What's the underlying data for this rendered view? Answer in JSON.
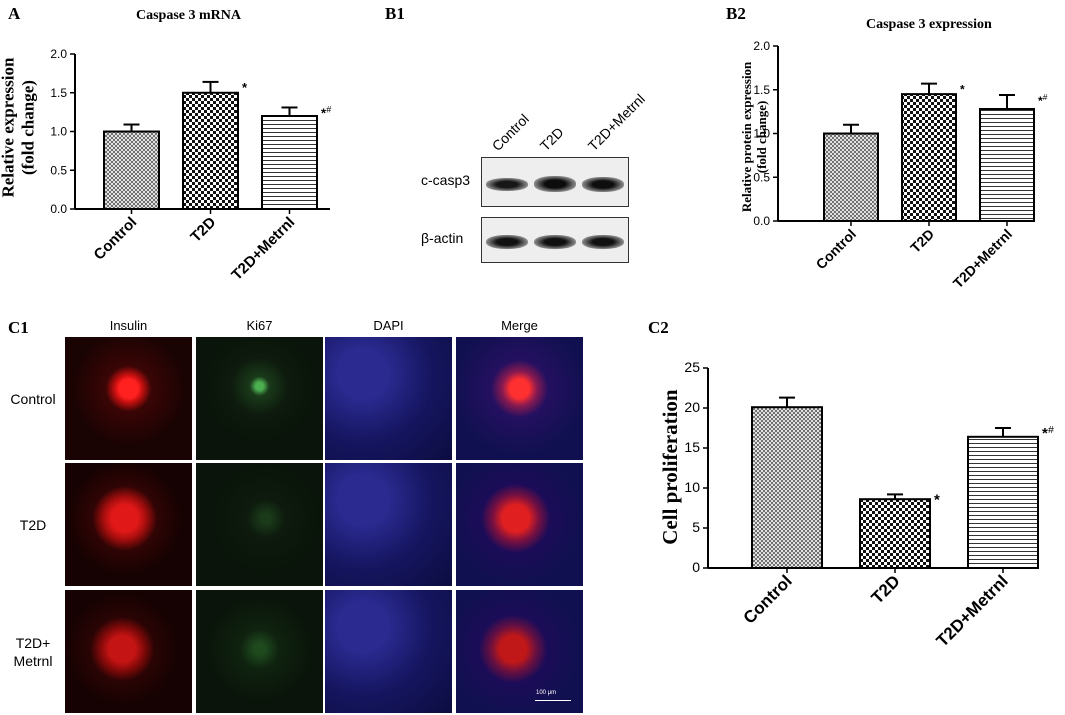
{
  "panel_labels": {
    "A": "A",
    "B1": "B1",
    "B2": "B2",
    "C1": "C1",
    "C2": "C2"
  },
  "chart_data": [
    {
      "type": "bar",
      "panel": "A",
      "title": "Caspase 3  mRNA",
      "ylabel": "Relative expression\n(fold change)",
      "categories": [
        "Control",
        "T2D",
        "T2D+Metrnl"
      ],
      "values": [
        1.0,
        1.5,
        1.2
      ],
      "errors": [
        0.09,
        0.14,
        0.11
      ],
      "significance": [
        "",
        "*",
        "*#"
      ],
      "ylim": [
        0,
        2.0
      ],
      "yticks": [
        "0.0",
        "0.5",
        "1.0",
        "1.5",
        "2.0"
      ],
      "patterns": [
        "grid",
        "checker",
        "hlines"
      ]
    },
    {
      "type": "bar",
      "panel": "B2",
      "title": "Caspase 3  expression",
      "ylabel": "Relative protein expression\n(fold change)",
      "categories": [
        "Control",
        "T2D",
        "T2D+Metrnl"
      ],
      "values": [
        1.0,
        1.45,
        1.28
      ],
      "errors": [
        0.1,
        0.12,
        0.16
      ],
      "significance": [
        "",
        "*",
        "*#"
      ],
      "ylim": [
        0,
        2.0
      ],
      "yticks": [
        "0.0",
        "0.5",
        "1.0",
        "1.5",
        "2.0"
      ],
      "patterns": [
        "grid",
        "checker",
        "hlines"
      ]
    },
    {
      "type": "bar",
      "panel": "C2",
      "title": "",
      "ylabel": "Cell proliferation",
      "categories": [
        "Control",
        "T2D",
        "T2D+Metrnl"
      ],
      "values": [
        20.1,
        8.6,
        16.4
      ],
      "errors": [
        1.2,
        0.6,
        1.1
      ],
      "significance": [
        "",
        "*",
        "*#"
      ],
      "ylim": [
        0,
        25
      ],
      "yticks": [
        "0",
        "5",
        "10",
        "15",
        "20",
        "25"
      ],
      "patterns": [
        "grid",
        "checker",
        "hlines"
      ]
    }
  ],
  "western_blot": {
    "lanes": [
      "Control",
      "T2D",
      "T2D+Metrnl"
    ],
    "rows": [
      {
        "label": "c-casp3",
        "intensities": [
          0.7,
          0.95,
          0.9
        ]
      },
      {
        "label": "β-actin",
        "intensities": [
          0.85,
          0.85,
          0.85
        ]
      }
    ]
  },
  "microscopy": {
    "columns": [
      "Insulin",
      "Ki67",
      "DAPI",
      "Merge"
    ],
    "rows": [
      "Control",
      "T2D",
      "T2D+\nMetrnl"
    ],
    "scale_bar": "100 μm"
  }
}
